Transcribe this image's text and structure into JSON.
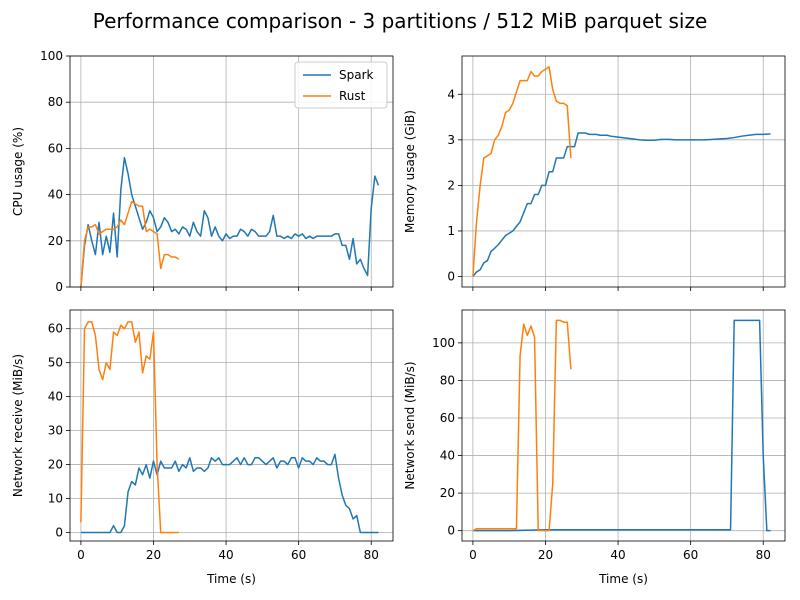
{
  "figure": {
    "title": "Performance comparison - 3 partitions / 512 MiB parquet size"
  },
  "colors": {
    "spark": "#1f77b4",
    "rust": "#ff7f0e"
  },
  "chart_data": [
    {
      "id": "cpu",
      "type": "line",
      "xlabel": "",
      "ylabel": "CPU usage (%)",
      "xlim": [
        -3,
        86
      ],
      "ylim": [
        0,
        100
      ],
      "xticks": [
        0,
        20,
        40,
        60,
        80
      ],
      "yticks": [
        0,
        20,
        40,
        60,
        80,
        100
      ],
      "show_xticklabels": false,
      "grid": true,
      "legend": {
        "placement": "top-right",
        "entries": [
          "Spark",
          "Rust"
        ]
      },
      "series": [
        {
          "name": "Spark",
          "x": [
            0,
            1,
            2,
            3,
            4,
            5,
            6,
            7,
            8,
            9,
            10,
            11,
            12,
            13,
            14,
            15,
            16,
            17,
            18,
            19,
            20,
            21,
            22,
            23,
            24,
            25,
            26,
            27,
            28,
            29,
            30,
            31,
            32,
            33,
            34,
            35,
            36,
            37,
            38,
            39,
            40,
            41,
            42,
            43,
            44,
            45,
            46,
            47,
            48,
            49,
            50,
            51,
            52,
            53,
            54,
            55,
            56,
            57,
            58,
            59,
            60,
            61,
            62,
            63,
            64,
            65,
            66,
            67,
            68,
            69,
            70,
            71,
            72,
            73,
            74,
            75,
            76,
            77,
            78,
            79,
            80,
            81,
            82
          ],
          "y": [
            0,
            18,
            27,
            20,
            14,
            28,
            14,
            22,
            15,
            32,
            13,
            42,
            56,
            49,
            40,
            35,
            30,
            25,
            28,
            33,
            30,
            24,
            26,
            30,
            28,
            24,
            25,
            23,
            26,
            25,
            22,
            28,
            24,
            22,
            33,
            30,
            22,
            26,
            22,
            20,
            23,
            21,
            22,
            22,
            25,
            24,
            22,
            25,
            24,
            22,
            22,
            22,
            24,
            31,
            22,
            22,
            21,
            22,
            21,
            23,
            22,
            23,
            21,
            22,
            21,
            22,
            22,
            22,
            22,
            22,
            23,
            23,
            18,
            18,
            12,
            21,
            10,
            12,
            8,
            5,
            34,
            48,
            44
          ]
        },
        {
          "name": "Rust",
          "x": [
            0,
            1,
            2,
            3,
            4,
            5,
            6,
            7,
            8,
            9,
            10,
            11,
            12,
            13,
            14,
            15,
            16,
            17,
            18,
            19,
            20,
            21,
            22,
            23,
            24,
            25,
            26,
            27
          ],
          "y": [
            0,
            20,
            26,
            26,
            27,
            23,
            24,
            25,
            25,
            25,
            26,
            29,
            27,
            32,
            37,
            36,
            35,
            35,
            24,
            25,
            24,
            23,
            8,
            14,
            14,
            13,
            13,
            12
          ]
        }
      ]
    },
    {
      "id": "memory",
      "type": "line",
      "xlabel": "",
      "ylabel": "Memory usage (GiB)",
      "xlim": [
        -3,
        86
      ],
      "ylim": [
        -0.23,
        4.84
      ],
      "xticks": [
        0,
        20,
        40,
        60,
        80
      ],
      "yticks": [
        0,
        1,
        2,
        3,
        4
      ],
      "show_xticklabels": false,
      "grid": true,
      "series": [
        {
          "name": "Spark",
          "x": [
            0,
            1,
            2,
            3,
            4,
            5,
            6,
            7,
            8,
            9,
            10,
            11,
            12,
            13,
            14,
            15,
            16,
            17,
            18,
            19,
            20,
            21,
            22,
            23,
            24,
            25,
            26,
            27,
            28,
            29,
            30,
            31,
            32,
            33,
            34,
            35,
            36,
            37,
            38,
            39,
            40,
            42,
            44,
            46,
            48,
            50,
            52,
            54,
            56,
            58,
            60,
            62,
            64,
            66,
            68,
            70,
            72,
            74,
            76,
            78,
            80,
            82
          ],
          "y": [
            0.0,
            0.1,
            0.15,
            0.3,
            0.35,
            0.55,
            0.62,
            0.7,
            0.8,
            0.9,
            0.95,
            1.0,
            1.1,
            1.2,
            1.4,
            1.6,
            1.6,
            1.8,
            1.8,
            2.0,
            2.0,
            2.3,
            2.3,
            2.6,
            2.6,
            2.6,
            2.85,
            2.85,
            2.85,
            3.15,
            3.15,
            3.15,
            3.12,
            3.12,
            3.12,
            3.1,
            3.1,
            3.1,
            3.08,
            3.07,
            3.06,
            3.04,
            3.02,
            3.0,
            2.99,
            2.99,
            3.01,
            3.01,
            3.0,
            3.0,
            3.0,
            3.0,
            3.0,
            3.01,
            3.02,
            3.03,
            3.05,
            3.08,
            3.1,
            3.12,
            3.12,
            3.13
          ]
        },
        {
          "name": "Rust",
          "x": [
            0,
            1,
            2,
            3,
            4,
            5,
            6,
            7,
            8,
            9,
            10,
            11,
            12,
            13,
            14,
            15,
            16,
            17,
            18,
            19,
            20,
            21,
            22,
            23,
            24,
            25,
            26,
            27
          ],
          "y": [
            0.0,
            1.2,
            2.0,
            2.6,
            2.65,
            2.7,
            3.0,
            3.1,
            3.3,
            3.6,
            3.65,
            3.8,
            4.05,
            4.3,
            4.3,
            4.3,
            4.5,
            4.4,
            4.4,
            4.5,
            4.55,
            4.6,
            4.1,
            3.85,
            3.8,
            3.8,
            3.75,
            2.6
          ]
        }
      ]
    },
    {
      "id": "net-recv",
      "type": "line",
      "xlabel": "Time (s)",
      "ylabel": "Network receive (MiB/s)",
      "xlim": [
        -3,
        86
      ],
      "ylim": [
        -2.5,
        65.5
      ],
      "xticks": [
        0,
        20,
        40,
        60,
        80
      ],
      "yticks": [
        0,
        10,
        20,
        30,
        40,
        50,
        60
      ],
      "show_xticklabels": true,
      "grid": true,
      "series": [
        {
          "name": "Spark",
          "x": [
            0,
            1,
            2,
            3,
            4,
            5,
            6,
            7,
            8,
            9,
            10,
            11,
            12,
            13,
            14,
            15,
            16,
            17,
            18,
            19,
            20,
            21,
            22,
            23,
            24,
            25,
            26,
            27,
            28,
            29,
            30,
            31,
            32,
            33,
            34,
            35,
            36,
            37,
            38,
            39,
            40,
            41,
            42,
            43,
            44,
            45,
            46,
            47,
            48,
            49,
            50,
            51,
            52,
            53,
            54,
            55,
            56,
            57,
            58,
            59,
            60,
            61,
            62,
            63,
            64,
            65,
            66,
            67,
            68,
            69,
            70,
            71,
            72,
            73,
            74,
            75,
            76,
            77,
            78,
            79,
            80,
            81,
            82
          ],
          "y": [
            0,
            0,
            0,
            0,
            0,
            0,
            0,
            0,
            0,
            2,
            0,
            0,
            2,
            12,
            15,
            14,
            19,
            17,
            20,
            16,
            21,
            17,
            21,
            19,
            19,
            19,
            21,
            18,
            20,
            19,
            22,
            18,
            19,
            19,
            18,
            19,
            22,
            21,
            22,
            20,
            20,
            20,
            21,
            22,
            20,
            22,
            20,
            20,
            22,
            22,
            21,
            20,
            21,
            22,
            19,
            21,
            21,
            20,
            22,
            22,
            19,
            22,
            21,
            21,
            20,
            22,
            21,
            21,
            20,
            20,
            23,
            16,
            11,
            8,
            7,
            4,
            5,
            0,
            0,
            0,
            0,
            0,
            0
          ]
        },
        {
          "name": "Rust",
          "x": [
            0,
            1,
            2,
            3,
            4,
            5,
            6,
            7,
            8,
            9,
            10,
            11,
            12,
            13,
            14,
            15,
            16,
            17,
            18,
            19,
            20,
            21,
            22,
            23,
            24,
            25,
            26,
            27
          ],
          "y": [
            3,
            60,
            62,
            62,
            58,
            48,
            45,
            50,
            48,
            59,
            58,
            61,
            60,
            62,
            62,
            56,
            59,
            47,
            52,
            51,
            59,
            20,
            0,
            0,
            0,
            0,
            0,
            0
          ]
        }
      ]
    },
    {
      "id": "net-send",
      "type": "line",
      "xlabel": "Time (s)",
      "ylabel": "Network send (MiB/s)",
      "xlim": [
        -3,
        86
      ],
      "ylim": [
        -5.5,
        117.5
      ],
      "xticks": [
        0,
        20,
        40,
        60,
        80
      ],
      "yticks": [
        0,
        20,
        40,
        60,
        80,
        100
      ],
      "show_xticklabels": true,
      "grid": true,
      "series": [
        {
          "name": "Spark",
          "x": [
            0,
            10,
            20,
            30,
            40,
            50,
            60,
            70,
            71,
            72,
            73,
            74,
            75,
            76,
            77,
            78,
            79,
            80,
            81,
            82
          ],
          "y": [
            0,
            0,
            0.5,
            0.5,
            0.5,
            0.5,
            0.5,
            0.5,
            0.5,
            112,
            112,
            112,
            112,
            112,
            112,
            112,
            112,
            40,
            0,
            0
          ]
        },
        {
          "name": "Rust",
          "x": [
            0,
            1,
            2,
            3,
            4,
            5,
            6,
            7,
            8,
            9,
            10,
            11,
            12,
            13,
            14,
            15,
            16,
            17,
            18,
            19,
            20,
            21,
            22,
            23,
            24,
            25,
            26,
            27
          ],
          "y": [
            0,
            1,
            1,
            1,
            1,
            1,
            1,
            1,
            1,
            1,
            1,
            1,
            1,
            93,
            110,
            104,
            109,
            103,
            0,
            0,
            0,
            0,
            25,
            112,
            112,
            111,
            111,
            86
          ]
        }
      ]
    }
  ]
}
